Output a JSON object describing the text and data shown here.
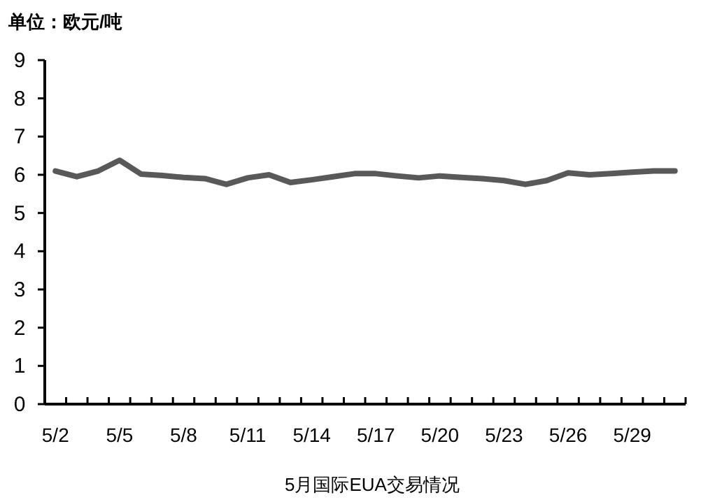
{
  "chart_data": {
    "type": "line",
    "title": "5月国际EUA交易情况",
    "ylabel": "单位：欧元/吨",
    "categories": [
      "5/2",
      null,
      null,
      "5/5",
      null,
      null,
      "5/8",
      null,
      null,
      "5/11",
      null,
      null,
      "5/14",
      null,
      null,
      "5/17",
      null,
      null,
      "5/20",
      null,
      null,
      "5/23",
      null,
      null,
      "5/26",
      null,
      null,
      "5/29",
      null,
      null
    ],
    "series": [
      {
        "color": "#595959",
        "values": [
          6.1,
          5.95,
          6.1,
          6.38,
          6.02,
          5.98,
          5.93,
          5.9,
          5.75,
          5.92,
          6.0,
          5.8,
          5.87,
          5.95,
          6.03,
          6.03,
          5.97,
          5.92,
          5.97,
          5.93,
          5.9,
          5.85,
          5.75,
          5.85,
          6.05,
          6.0,
          6.03,
          6.07,
          6.1,
          6.1
        ]
      }
    ],
    "ylim": [
      0,
      9
    ],
    "yticks": [
      0,
      1,
      2,
      3,
      4,
      5,
      6,
      7,
      8,
      9
    ],
    "grid": false,
    "marker": "none",
    "line_style": "solid"
  }
}
